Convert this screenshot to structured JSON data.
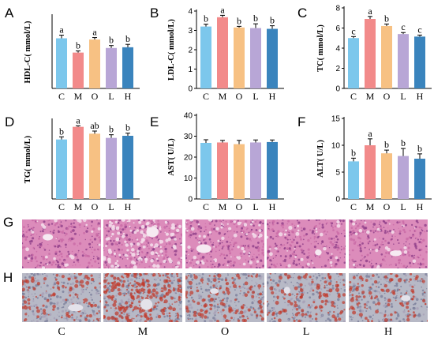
{
  "colors": {
    "C": "#7cc7ec",
    "M": "#f28a8a",
    "O": "#f7c183",
    "L": "#b8a6d6",
    "H": "#3a84bd",
    "he_bg": "#dc8cbb",
    "oro_bg": "#b7b9c6"
  },
  "chart_data": [
    {
      "panel": "A",
      "type": "bar",
      "ylabel": "HDL-C( mmol/L)",
      "categories": [
        "C",
        "M",
        "O",
        "L",
        "H"
      ],
      "values": [
        2.07,
        1.48,
        2.02,
        1.67,
        1.7
      ],
      "errors": [
        0.13,
        0.07,
        0.08,
        0.1,
        0.12
      ],
      "letters": [
        "a",
        "b",
        "a",
        "b",
        "b"
      ],
      "ylim": [
        0,
        3
      ],
      "ticks": [],
      "show_tick_labels": false
    },
    {
      "panel": "B",
      "type": "bar",
      "ylabel": "LDL-C( mmol/L)",
      "categories": [
        "C",
        "M",
        "O",
        "L",
        "H"
      ],
      "values": [
        3.2,
        3.68,
        3.15,
        3.12,
        3.08
      ],
      "errors": [
        0.12,
        0.1,
        0.06,
        0.22,
        0.16
      ],
      "letters": [
        "b",
        "a",
        "b",
        "b",
        "b"
      ],
      "ylim": [
        0,
        4
      ],
      "ticks": [
        0,
        1,
        2,
        3,
        4
      ],
      "show_tick_labels": true
    },
    {
      "panel": "C",
      "type": "bar",
      "ylabel": "TC( mmol/L)",
      "categories": [
        "C",
        "M",
        "O",
        "L",
        "H"
      ],
      "values": [
        5.0,
        6.9,
        6.2,
        5.4,
        5.15
      ],
      "errors": [
        0.15,
        0.25,
        0.2,
        0.15,
        0.15
      ],
      "letters": [
        "c",
        "a",
        "b",
        "c",
        "c"
      ],
      "ylim": [
        0,
        8
      ],
      "ticks": [
        0,
        2,
        4,
        6,
        8
      ],
      "show_tick_labels": true
    },
    {
      "panel": "D",
      "type": "bar",
      "ylabel": "TG( mmol/L)",
      "categories": [
        "C",
        "M",
        "O",
        "L",
        "H"
      ],
      "values": [
        1.13,
        1.37,
        1.24,
        1.16,
        1.2
      ],
      "errors": [
        0.05,
        0.02,
        0.05,
        0.06,
        0.05
      ],
      "letters": [
        "b",
        "a",
        "ab",
        "b",
        "b"
      ],
      "ylim": [
        0,
        1.5
      ],
      "ticks": [],
      "show_tick_labels": false
    },
    {
      "panel": "E",
      "type": "bar",
      "ylabel": "AST( U/L)",
      "categories": [
        "C",
        "M",
        "O",
        "L",
        "H"
      ],
      "values": [
        26.8,
        27.0,
        26.2,
        27.0,
        27.2
      ],
      "errors": [
        1.5,
        1.0,
        1.8,
        1.2,
        1.0
      ],
      "letters": [
        "",
        "",
        "",
        "",
        ""
      ],
      "ylim": [
        0,
        40
      ],
      "ticks": [
        0,
        10,
        20,
        30,
        40
      ],
      "show_tick_labels": true
    },
    {
      "panel": "F",
      "type": "bar",
      "ylabel": "ALT( U/L)",
      "categories": [
        "C",
        "M",
        "O",
        "L",
        "H"
      ],
      "values": [
        7.0,
        10.0,
        8.5,
        8.0,
        7.5
      ],
      "errors": [
        0.6,
        1.2,
        0.6,
        1.4,
        0.9
      ],
      "letters": [
        "b",
        "a",
        "b",
        "b",
        "b"
      ],
      "ylim": [
        0,
        15
      ],
      "ticks": [
        0,
        5,
        10,
        15
      ],
      "show_tick_labels": true
    }
  ],
  "micrographs": {
    "row_labels": [
      "G",
      "H"
    ],
    "column_labels": [
      "C",
      "M",
      "O",
      "L",
      "H"
    ]
  }
}
